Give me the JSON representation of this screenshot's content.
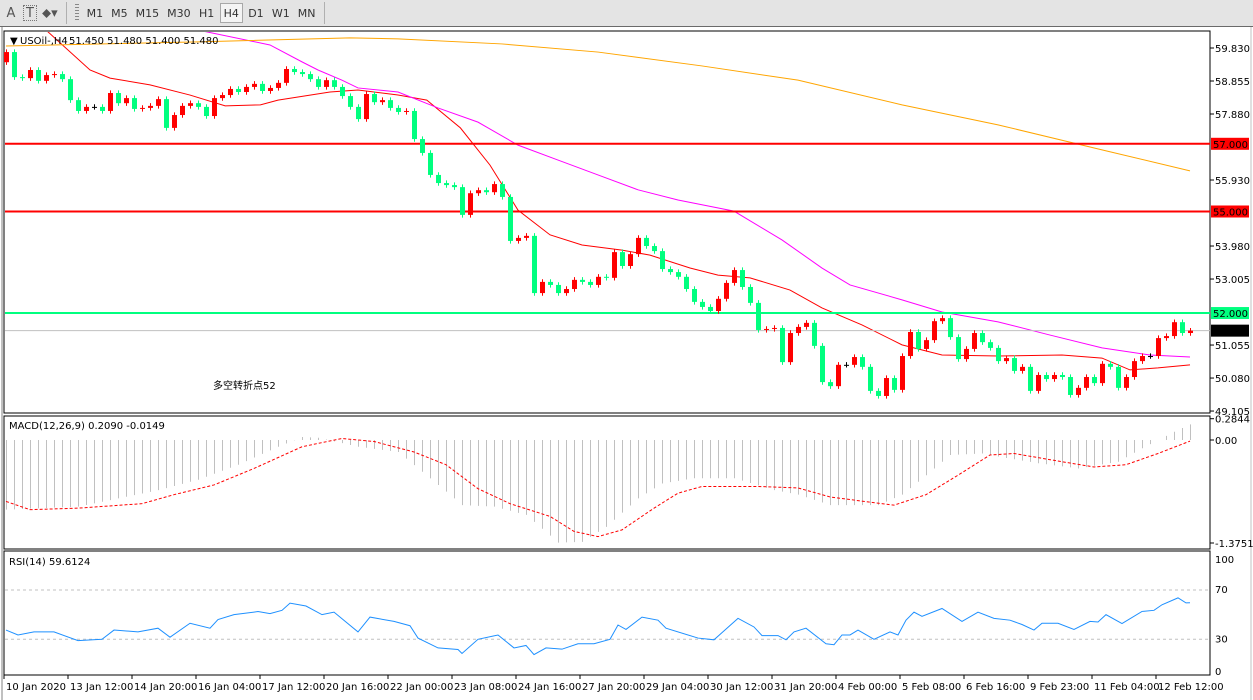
{
  "toolbar": {
    "tools": [
      {
        "name": "text-tool",
        "glyph": "A"
      },
      {
        "name": "text-label-tool",
        "glyph": "T"
      },
      {
        "name": "arrows-tool",
        "glyph": "⬥▾"
      }
    ],
    "timeframes": [
      "M1",
      "M5",
      "M15",
      "M30",
      "H1",
      "H4",
      "D1",
      "W1",
      "MN"
    ],
    "active_timeframe": "H4"
  },
  "chart_header": {
    "arrow": "▼",
    "symbol": "USOil-,H4",
    "ohlc": "51.450 51.480 51.400 51.480"
  },
  "annotation": {
    "text": "多空转折点52",
    "color": "#ff0000"
  },
  "colors": {
    "bull": "#ff0000",
    "bear": "#00ff7f",
    "doji": "#000000",
    "ma_fast": "#ff0000",
    "ma_mid": "#ff00ff",
    "ma_slow": "#ffa500",
    "level_red": "#ff0000",
    "level_green": "#00ff7f",
    "rsi": "#1e90ff",
    "macd_hist": "#c0c0c0",
    "macd_signal": "#ff0000"
  },
  "chart_data": [
    {
      "type": "candlestick",
      "title": "USOil-,H4",
      "ylim": [
        49.105,
        59.83
      ],
      "y_ticks": [
        "59.830",
        "58.855",
        "57.880",
        "55.930",
        "53.980",
        "53.005",
        "51.055",
        "50.080",
        "49.105"
      ],
      "x_labels": [
        {
          "bar": 0,
          "label": "10 Jan 2020"
        },
        {
          "bar": 8,
          "label": "13 Jan 12:00"
        },
        {
          "bar": 16,
          "label": "14 Jan 20:00"
        },
        {
          "bar": 24,
          "label": "16 Jan 04:00"
        },
        {
          "bar": 32,
          "label": "17 Jan 12:00"
        },
        {
          "bar": 40,
          "label": "20 Jan 16:00"
        },
        {
          "bar": 48,
          "label": "22 Jan 00:00"
        },
        {
          "bar": 56,
          "label": "23 Jan 08:00"
        },
        {
          "bar": 64,
          "label": "24 Jan 16:00"
        },
        {
          "bar": 72,
          "label": "27 Jan 20:00"
        },
        {
          "bar": 80,
          "label": "29 Jan 04:00"
        },
        {
          "bar": 88,
          "label": "30 Jan 12:00"
        },
        {
          "bar": 96,
          "label": "31 Jan 20:00"
        },
        {
          "bar": 104,
          "label": "4 Feb 00:00"
        },
        {
          "bar": 112,
          "label": "5 Feb 08:00"
        },
        {
          "bar": 120,
          "label": "6 Feb 16:00"
        },
        {
          "bar": 128,
          "label": "9 Feb 23:00"
        },
        {
          "bar": 136,
          "label": "11 Feb 04:00"
        },
        {
          "bar": 144,
          "label": "12 Feb 12:00"
        }
      ],
      "first_open": 59.41,
      "closes": [
        59.71,
        58.97,
        58.94,
        59.18,
        58.86,
        59.03,
        59.06,
        58.91,
        58.29,
        57.97,
        58.09,
        58.09,
        57.97,
        58.5,
        58.2,
        58.35,
        58.03,
        58.06,
        58.12,
        58.32,
        57.47,
        57.85,
        58.12,
        58.2,
        58.09,
        57.82,
        58.35,
        58.44,
        58.62,
        58.53,
        58.68,
        58.77,
        58.56,
        58.65,
        58.8,
        59.21,
        59.12,
        59.06,
        58.91,
        58.68,
        58.88,
        58.68,
        58.41,
        58.09,
        57.73,
        58.47,
        58.23,
        58.29,
        58.06,
        57.94,
        57.97,
        57.14,
        56.73,
        56.08,
        55.84,
        55.78,
        55.72,
        54.9,
        55.54,
        55.63,
        55.57,
        55.81,
        55.43,
        54.13,
        54.22,
        54.28,
        52.59,
        52.92,
        52.83,
        52.59,
        52.71,
        52.98,
        52.92,
        52.83,
        53.07,
        53.04,
        53.8,
        53.39,
        53.74,
        54.22,
        53.98,
        53.83,
        53.3,
        53.21,
        53.07,
        52.71,
        52.33,
        52.18,
        52.06,
        52.42,
        52.89,
        53.27,
        52.77,
        52.3,
        51.5,
        51.53,
        51.56,
        50.55,
        51.41,
        51.59,
        51.71,
        51.03,
        49.96,
        49.84,
        50.47,
        50.47,
        50.7,
        50.41,
        49.7,
        49.55,
        50.08,
        49.73,
        50.73,
        51.44,
        50.94,
        51.2,
        51.76,
        51.85,
        51.29,
        50.64,
        50.94,
        51.41,
        51.14,
        50.97,
        50.58,
        50.67,
        50.29,
        50.41,
        49.7,
        50.17,
        50.05,
        50.17,
        50.11,
        49.58,
        49.79,
        50.11,
        49.93,
        50.5,
        50.41,
        49.79,
        50.11,
        50.58,
        50.73,
        50.73,
        51.26,
        51.32,
        51.73,
        51.41,
        51.48
      ],
      "moving_averages": [
        {
          "key": "ma_fast",
          "points": [
            [
              5,
              60.36
            ],
            [
              10.5,
              59.18
            ],
            [
              13,
              58.94
            ],
            [
              18,
              58.74
            ],
            [
              23,
              58.44
            ],
            [
              27.4,
              58.12
            ],
            [
              31.8,
              58.15
            ],
            [
              34,
              58.29
            ],
            [
              40.5,
              58.53
            ],
            [
              44,
              58.59
            ],
            [
              49,
              58.44
            ],
            [
              52.6,
              58.29
            ],
            [
              56.8,
              57.47
            ],
            [
              60.5,
              56.37
            ],
            [
              64,
              55.04
            ],
            [
              68,
              54.31
            ],
            [
              72,
              54.01
            ],
            [
              77,
              53.86
            ],
            [
              80.5,
              53.71
            ],
            [
              85.5,
              53.33
            ],
            [
              89,
              53.12
            ],
            [
              93,
              53.04
            ],
            [
              98,
              52.68
            ],
            [
              102,
              52.15
            ],
            [
              107,
              51.65
            ],
            [
              112,
              51.06
            ],
            [
              117,
              50.76
            ],
            [
              124,
              50.73
            ],
            [
              132,
              50.76
            ],
            [
              137,
              50.67
            ],
            [
              140.5,
              50.32
            ],
            [
              144,
              50.38
            ],
            [
              148,
              50.47
            ]
          ]
        },
        {
          "key": "ma_mid",
          "points": [
            [
              24,
              60.36
            ],
            [
              33,
              59.92
            ],
            [
              37,
              59.42
            ],
            [
              39,
              59.18
            ],
            [
              42,
              58.88
            ],
            [
              44,
              58.65
            ],
            [
              49,
              58.53
            ],
            [
              54,
              58.06
            ],
            [
              59,
              57.64
            ],
            [
              64,
              56.96
            ],
            [
              69,
              56.52
            ],
            [
              74,
              56.08
            ],
            [
              79,
              55.64
            ],
            [
              84,
              55.34
            ],
            [
              91,
              55.01
            ],
            [
              97,
              54.16
            ],
            [
              102,
              53.33
            ],
            [
              105.5,
              52.83
            ],
            [
              112,
              52.39
            ],
            [
              117,
              52.03
            ],
            [
              124,
              51.74
            ],
            [
              130.5,
              51.35
            ],
            [
              137,
              50.97
            ],
            [
              143,
              50.76
            ],
            [
              148,
              50.7
            ]
          ]
        },
        {
          "key": "ma_slow",
          "points": [
            [
              0,
              59.89
            ],
            [
              24,
              60.01
            ],
            [
              43,
              60.13
            ],
            [
              49,
              60.1
            ],
            [
              62,
              59.95
            ],
            [
              74,
              59.71
            ],
            [
              87,
              59.3
            ],
            [
              99,
              58.88
            ],
            [
              112,
              58.15
            ],
            [
              124,
              57.56
            ],
            [
              137,
              56.82
            ],
            [
              148,
              56.2
            ]
          ]
        }
      ],
      "levels": [
        {
          "value": 57.0,
          "label": "57.000",
          "color": "level_red"
        },
        {
          "value": 55.0,
          "label": "55.000",
          "color": "level_red"
        },
        {
          "value": 52.0,
          "label": "52.000",
          "color": "level_green"
        }
      ],
      "current_price": {
        "value": 51.48,
        "label": "51.480"
      }
    },
    {
      "type": "bar",
      "title": "MACD(12,26,9) 0.2090 -0.0149",
      "ylim": [
        -1.3751,
        0.2844
      ],
      "y_ticks": [
        "0.2844",
        "0.00",
        "-1.3751"
      ],
      "main_points": [
        [
          0,
          -0.93
        ],
        [
          9,
          -0.89
        ],
        [
          19,
          -0.67
        ],
        [
          24,
          -0.53
        ],
        [
          29,
          -0.33
        ],
        [
          34,
          -0.09
        ],
        [
          37,
          0.04
        ],
        [
          39,
          0.03
        ],
        [
          44,
          -0.09
        ],
        [
          49,
          -0.16
        ],
        [
          54,
          -0.6
        ],
        [
          57,
          -0.87
        ],
        [
          61,
          -0.89
        ],
        [
          65,
          -1.0
        ],
        [
          69,
          -1.37
        ],
        [
          72,
          -1.36
        ],
        [
          75,
          -1.16
        ],
        [
          79,
          -0.78
        ],
        [
          82,
          -0.58
        ],
        [
          86,
          -0.51
        ],
        [
          91,
          -0.51
        ],
        [
          96,
          -0.67
        ],
        [
          99,
          -0.73
        ],
        [
          103,
          -0.87
        ],
        [
          109,
          -0.87
        ],
        [
          112,
          -0.73
        ],
        [
          115,
          -0.47
        ],
        [
          118,
          -0.2
        ],
        [
          122,
          -0.18
        ],
        [
          125,
          -0.24
        ],
        [
          129,
          -0.31
        ],
        [
          134,
          -0.38
        ],
        [
          139,
          -0.29
        ],
        [
          142,
          -0.11
        ],
        [
          144,
          0.0
        ],
        [
          146,
          0.11
        ],
        [
          148,
          0.209
        ]
      ],
      "signal_points": [
        [
          0,
          -0.82
        ],
        [
          3,
          -0.93
        ],
        [
          9,
          -0.91
        ],
        [
          17,
          -0.85
        ],
        [
          21,
          -0.73
        ],
        [
          26,
          -0.6
        ],
        [
          31,
          -0.38
        ],
        [
          37,
          -0.09
        ],
        [
          42,
          0.02
        ],
        [
          46,
          -0.02
        ],
        [
          51,
          -0.16
        ],
        [
          55,
          -0.33
        ],
        [
          59,
          -0.65
        ],
        [
          63,
          -0.85
        ],
        [
          68,
          -1.02
        ],
        [
          71,
          -1.22
        ],
        [
          74,
          -1.29
        ],
        [
          77,
          -1.2
        ],
        [
          81,
          -0.91
        ],
        [
          84,
          -0.71
        ],
        [
          87,
          -0.62
        ],
        [
          94,
          -0.62
        ],
        [
          99,
          -0.64
        ],
        [
          103,
          -0.76
        ],
        [
          108,
          -0.83
        ],
        [
          111,
          -0.87
        ],
        [
          115,
          -0.73
        ],
        [
          119,
          -0.47
        ],
        [
          123,
          -0.2
        ],
        [
          126,
          -0.18
        ],
        [
          132,
          -0.29
        ],
        [
          136,
          -0.36
        ],
        [
          140,
          -0.33
        ],
        [
          144,
          -0.18
        ],
        [
          148,
          -0.0149
        ]
      ]
    },
    {
      "type": "line",
      "title": "RSI(14) 59.6124",
      "ylim": [
        0,
        100
      ],
      "y_ticks": [
        "100",
        "70",
        "30",
        "0"
      ],
      "levels": [
        70,
        30
      ],
      "points": [
        [
          0,
          37.5
        ],
        [
          1.5,
          33.5
        ],
        [
          3.5,
          36
        ],
        [
          6,
          36
        ],
        [
          9,
          28.9
        ],
        [
          12,
          30
        ],
        [
          13.5,
          37.5
        ],
        [
          16.5,
          36
        ],
        [
          19,
          39
        ],
        [
          20.5,
          31.7
        ],
        [
          23,
          43
        ],
        [
          25.5,
          39
        ],
        [
          26.5,
          46
        ],
        [
          28.5,
          50
        ],
        [
          31.5,
          52.5
        ],
        [
          33,
          50.8
        ],
        [
          34.5,
          53.5
        ],
        [
          35.5,
          59.3
        ],
        [
          37.5,
          57
        ],
        [
          39.5,
          50
        ],
        [
          41,
          52
        ],
        [
          44,
          36
        ],
        [
          45.5,
          48
        ],
        [
          48.5,
          44.5
        ],
        [
          50.5,
          41
        ],
        [
          51.5,
          31
        ],
        [
          54,
          23
        ],
        [
          56.5,
          21.7
        ],
        [
          57,
          18.5
        ],
        [
          59,
          30
        ],
        [
          61.5,
          33.5
        ],
        [
          63.5,
          23
        ],
        [
          65,
          25
        ],
        [
          66,
          17.6
        ],
        [
          67.5,
          23
        ],
        [
          69.5,
          22
        ],
        [
          71.5,
          26.4
        ],
        [
          73.5,
          26.4
        ],
        [
          75.5,
          30
        ],
        [
          76.5,
          41.6
        ],
        [
          77.5,
          38
        ],
        [
          79.5,
          48
        ],
        [
          81.5,
          45.5
        ],
        [
          82.5,
          39
        ],
        [
          86.5,
          31
        ],
        [
          88.5,
          29.6
        ],
        [
          91.5,
          47
        ],
        [
          93.5,
          40
        ],
        [
          94.5,
          33
        ],
        [
          96.5,
          33
        ],
        [
          97.5,
          29.6
        ],
        [
          98.5,
          36
        ],
        [
          100,
          39
        ],
        [
          102.5,
          26.4
        ],
        [
          103.5,
          25.6
        ],
        [
          104.5,
          33.5
        ],
        [
          105.5,
          33.5
        ],
        [
          106.5,
          37.5
        ],
        [
          108.5,
          30
        ],
        [
          110.5,
          36
        ],
        [
          111.5,
          33.5
        ],
        [
          112.5,
          45.5
        ],
        [
          113.5,
          52
        ],
        [
          114.5,
          48.6
        ],
        [
          117,
          55
        ],
        [
          119.5,
          44.5
        ],
        [
          121.5,
          52
        ],
        [
          123.5,
          47
        ],
        [
          125.5,
          45.5
        ],
        [
          127,
          42
        ],
        [
          128.5,
          37.5
        ],
        [
          129.5,
          43
        ],
        [
          131.5,
          43
        ],
        [
          133.5,
          38
        ],
        [
          135.5,
          44.5
        ],
        [
          136.5,
          44
        ],
        [
          137.5,
          50
        ],
        [
          139.5,
          42.8
        ],
        [
          142,
          52.6
        ],
        [
          143.5,
          53.5
        ],
        [
          144.5,
          58
        ],
        [
          146.5,
          63.6
        ],
        [
          147.5,
          59.5
        ],
        [
          148,
          59.6
        ]
      ]
    }
  ]
}
